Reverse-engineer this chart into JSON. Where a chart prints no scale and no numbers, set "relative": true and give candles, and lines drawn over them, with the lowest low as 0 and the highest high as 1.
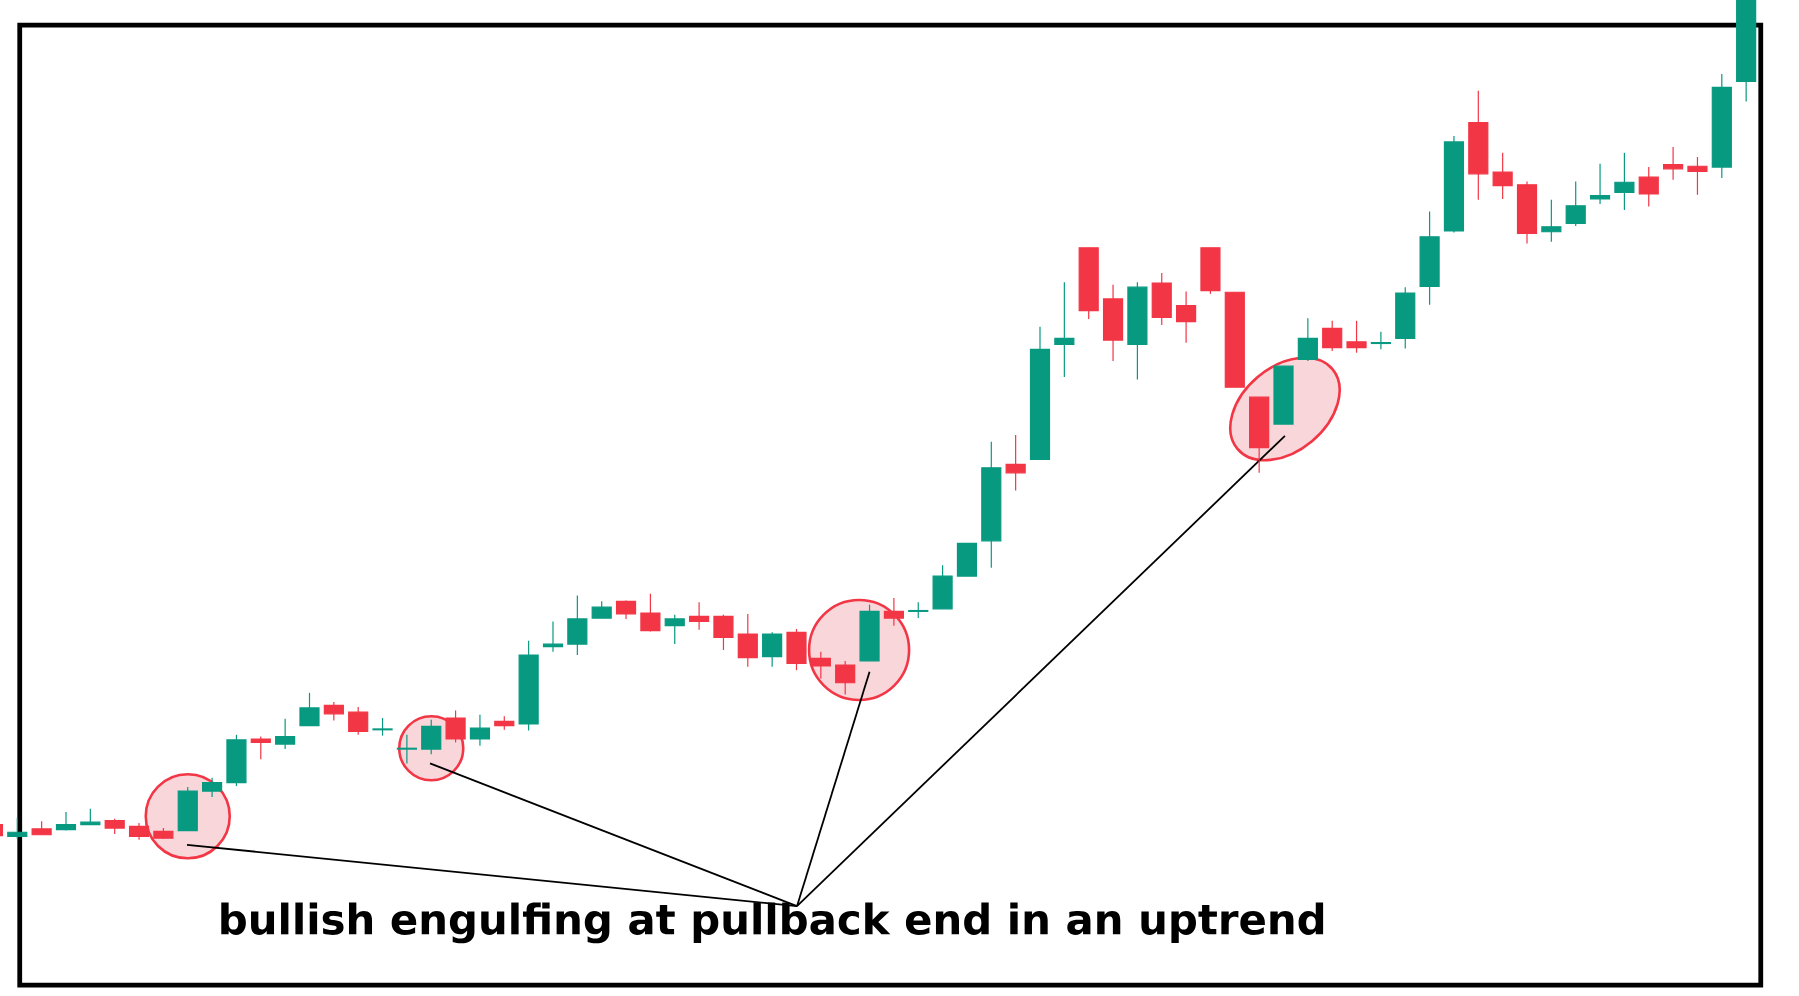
{
  "chart_data": {
    "type": "candlestick",
    "relative": true,
    "categories": [
      null,
      null,
      null,
      null,
      null,
      null,
      null,
      null,
      null,
      null,
      null,
      null,
      null,
      null,
      null,
      null,
      null,
      null,
      null,
      null,
      null,
      null,
      null,
      null,
      null,
      null,
      null,
      null,
      null,
      null,
      null,
      null,
      null,
      null,
      null,
      null,
      null,
      null,
      null,
      null,
      null,
      null,
      null,
      null,
      null,
      null,
      null,
      null,
      null,
      null,
      null,
      null,
      null,
      null,
      null,
      null,
      null,
      null,
      null,
      null,
      null,
      null,
      null,
      null,
      null,
      null,
      null,
      null,
      null,
      null,
      null,
      null,
      null
    ],
    "ohlc": [
      [
        0.018,
        0.019,
        0.003,
        0.005
      ],
      [
        0.004,
        0.026,
        0.001,
        0.009
      ],
      [
        0.013,
        0.022,
        0.006,
        0.006
      ],
      [
        0.012,
        0.033,
        0.011,
        0.018
      ],
      [
        0.018,
        0.037,
        0.018,
        0.021
      ],
      [
        0.023,
        0.025,
        0.007,
        0.014
      ],
      [
        0.016,
        0.02,
        0.0,
        0.004
      ],
      [
        0.01,
        0.014,
        0.001,
        0.002
      ],
      [
        0.011,
        0.063,
        0.011,
        0.058
      ],
      [
        0.058,
        0.074,
        0.051,
        0.068
      ],
      [
        0.068,
        0.125,
        0.064,
        0.119
      ],
      [
        0.12,
        0.123,
        0.096,
        0.116
      ],
      [
        0.114,
        0.144,
        0.108,
        0.123
      ],
      [
        0.136,
        0.175,
        0.136,
        0.157
      ],
      [
        0.16,
        0.164,
        0.142,
        0.15
      ],
      [
        0.152,
        0.158,
        0.125,
        0.129
      ],
      [
        0.131,
        0.145,
        0.124,
        0.132
      ],
      [
        0.108,
        0.125,
        0.091,
        0.109
      ],
      [
        0.108,
        0.143,
        0.102,
        0.135
      ],
      [
        0.145,
        0.154,
        0.116,
        0.12
      ],
      [
        0.12,
        0.149,
        0.112,
        0.133
      ],
      [
        0.141,
        0.147,
        0.131,
        0.136
      ],
      [
        0.138,
        0.237,
        0.13,
        0.22
      ],
      [
        0.23,
        0.26,
        0.224,
        0.233
      ],
      [
        0.233,
        0.291,
        0.22,
        0.263
      ],
      [
        0.264,
        0.284,
        0.264,
        0.277
      ],
      [
        0.284,
        0.285,
        0.263,
        0.269
      ],
      [
        0.27,
        0.293,
        0.248,
        0.249
      ],
      [
        0.255,
        0.268,
        0.233,
        0.263
      ],
      [
        0.266,
        0.283,
        0.25,
        0.26
      ],
      [
        0.266,
        0.268,
        0.226,
        0.241
      ],
      [
        0.245,
        0.269,
        0.206,
        0.217
      ],
      [
        0.218,
        0.247,
        0.206,
        0.245
      ],
      [
        0.247,
        0.251,
        0.202,
        0.21
      ],
      [
        0.216,
        0.224,
        0.192,
        0.207
      ],
      [
        0.208,
        0.213,
        0.173,
        0.187
      ],
      [
        0.213,
        0.28,
        0.213,
        0.272
      ],
      [
        0.272,
        0.288,
        0.255,
        0.264
      ],
      [
        0.272,
        0.283,
        0.264,
        0.273
      ],
      [
        0.275,
        0.327,
        0.275,
        0.314
      ],
      [
        0.314,
        0.353,
        0.314,
        0.353
      ],
      [
        0.356,
        0.474,
        0.324,
        0.443
      ],
      [
        0.447,
        0.482,
        0.416,
        0.437
      ],
      [
        0.453,
        0.611,
        0.453,
        0.584
      ],
      [
        0.59,
        0.664,
        0.551,
        0.597
      ],
      [
        0.705,
        0.705,
        0.62,
        0.63
      ],
      [
        0.644,
        0.661,
        0.57,
        0.595
      ],
      [
        0.59,
        0.664,
        0.548,
        0.658
      ],
      [
        0.663,
        0.675,
        0.613,
        0.622
      ],
      [
        0.636,
        0.653,
        0.592,
        0.617
      ],
      [
        0.705,
        0.705,
        0.65,
        0.654
      ],
      [
        0.652,
        0.652,
        0.539,
        0.539
      ],
      [
        0.527,
        0.527,
        0.437,
        0.467
      ],
      [
        0.495,
        0.564,
        0.495,
        0.564
      ],
      [
        0.572,
        0.621,
        0.57,
        0.597
      ],
      [
        0.609,
        0.618,
        0.582,
        0.586
      ],
      [
        0.593,
        0.618,
        0.58,
        0.586
      ],
      [
        0.591,
        0.605,
        0.584,
        0.592
      ],
      [
        0.597,
        0.658,
        0.585,
        0.651
      ],
      [
        0.659,
        0.748,
        0.637,
        0.718
      ],
      [
        0.725,
        0.838,
        0.723,
        0.831
      ],
      [
        0.854,
        0.892,
        0.762,
        0.793
      ],
      [
        0.795,
        0.818,
        0.763,
        0.779
      ],
      [
        0.78,
        0.784,
        0.71,
        0.722
      ],
      [
        0.724,
        0.762,
        0.712,
        0.73
      ],
      [
        0.734,
        0.784,
        0.731,
        0.755
      ],
      [
        0.763,
        0.805,
        0.757,
        0.767
      ],
      [
        0.771,
        0.818,
        0.75,
        0.783
      ],
      [
        0.789,
        0.801,
        0.754,
        0.769
      ],
      [
        0.804,
        0.825,
        0.786,
        0.799
      ],
      [
        0.802,
        0.813,
        0.768,
        0.796
      ],
      [
        0.801,
        0.912,
        0.788,
        0.896
      ],
      [
        0.903,
        1.0,
        0.879,
        1.0
      ]
    ],
    "colors": [
      "#f23645",
      "#089981",
      "#f23645",
      "#089981",
      "#089981",
      "#f23645",
      "#f23645",
      "#f23645",
      "#089981",
      "#089981",
      "#089981",
      "#f23645",
      "#089981",
      "#089981",
      "#f23645",
      "#f23645",
      "#089981",
      "#089981",
      "#089981",
      "#f23645",
      "#089981",
      "#f23645",
      "#089981",
      "#089981",
      "#089981",
      "#089981",
      "#f23645",
      "#f23645",
      "#089981",
      "#f23645",
      "#f23645",
      "#f23645",
      "#089981",
      "#f23645",
      "#f23645",
      "#f23645",
      "#089981",
      "#f23645",
      "#089981",
      "#089981",
      "#089981",
      "#089981",
      "#f23645",
      "#089981",
      "#089981",
      "#f23645",
      "#f23645",
      "#089981",
      "#f23645",
      "#f23645",
      "#f23645",
      "#f23645",
      "#f23645",
      "#089981",
      "#089981",
      "#f23645",
      "#f23645",
      "#089981",
      "#089981",
      "#089981",
      "#089981",
      "#f23645",
      "#f23645",
      "#f23645",
      "#089981",
      "#089981",
      "#089981",
      "#089981",
      "#f23645",
      "#f23645",
      "#f23645",
      "#089981",
      "#089981"
    ],
    "annotations": [
      "bullish engulfing at pullback end in an uptrend"
    ]
  }
}
